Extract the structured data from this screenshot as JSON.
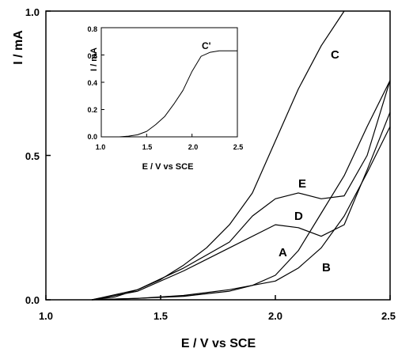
{
  "chart_data": [
    {
      "type": "line",
      "title": "",
      "xlabel": "E / V vs SCE",
      "ylabel": "I / mA",
      "xlim": [
        1.0,
        2.5
      ],
      "ylim": [
        0.0,
        1.0
      ],
      "xticks": [
        "1.0",
        "1.5",
        "2.0",
        "2.5"
      ],
      "yticks": [
        "0.0",
        "0.5",
        "1.0"
      ],
      "grid": false,
      "legend": "none",
      "series": [
        {
          "name": "A",
          "x": [
            1.2,
            1.4,
            1.6,
            1.8,
            1.9,
            2.0,
            2.1,
            2.2,
            2.3,
            2.4,
            2.5
          ],
          "y": [
            0.0,
            0.005,
            0.012,
            0.03,
            0.05,
            0.085,
            0.17,
            0.3,
            0.43,
            0.6,
            0.76
          ]
        },
        {
          "name": "B",
          "x": [
            1.2,
            1.4,
            1.6,
            1.8,
            2.0,
            2.1,
            2.2,
            2.3,
            2.4,
            2.5
          ],
          "y": [
            0.0,
            0.005,
            0.015,
            0.035,
            0.065,
            0.11,
            0.18,
            0.29,
            0.44,
            0.6
          ]
        },
        {
          "name": "C",
          "x": [
            1.2,
            1.3,
            1.4,
            1.5,
            1.6,
            1.7,
            1.8,
            1.9,
            2.0,
            2.1,
            2.2,
            2.3
          ],
          "y": [
            0.0,
            0.01,
            0.035,
            0.07,
            0.12,
            0.18,
            0.26,
            0.37,
            0.55,
            0.73,
            0.88,
            1.0
          ]
        },
        {
          "name": "D",
          "x": [
            1.2,
            1.4,
            1.6,
            1.8,
            2.0,
            2.1,
            2.2,
            2.3,
            2.4,
            2.5
          ],
          "y": [
            0.0,
            0.03,
            0.1,
            0.18,
            0.26,
            0.25,
            0.22,
            0.26,
            0.45,
            0.65
          ]
        },
        {
          "name": "E",
          "x": [
            1.2,
            1.4,
            1.6,
            1.8,
            1.9,
            2.0,
            2.1,
            2.2,
            2.3,
            2.4,
            2.5
          ],
          "y": [
            0.0,
            0.035,
            0.11,
            0.2,
            0.29,
            0.35,
            0.37,
            0.35,
            0.36,
            0.5,
            0.76
          ]
        }
      ]
    },
    {
      "type": "line",
      "title": "",
      "xlabel": "E / V vs SCE",
      "ylabel": "I / mA",
      "xlim": [
        1.0,
        2.5
      ],
      "ylim": [
        0.0,
        0.8
      ],
      "xticks": [
        "1.0",
        "1.5",
        "2.0",
        "2.5"
      ],
      "yticks": [
        "0.0",
        "0.2",
        "0.4",
        "0.6",
        "0.8"
      ],
      "grid": false,
      "legend": "none",
      "series": [
        {
          "name": "C'",
          "x": [
            1.0,
            1.2,
            1.3,
            1.4,
            1.5,
            1.6,
            1.7,
            1.8,
            1.9,
            2.0,
            2.1,
            2.2,
            2.3,
            2.4,
            2.5
          ],
          "y": [
            0.0,
            0.0,
            0.005,
            0.015,
            0.04,
            0.09,
            0.15,
            0.24,
            0.34,
            0.48,
            0.59,
            0.62,
            0.63,
            0.63,
            0.63
          ]
        }
      ]
    }
  ]
}
